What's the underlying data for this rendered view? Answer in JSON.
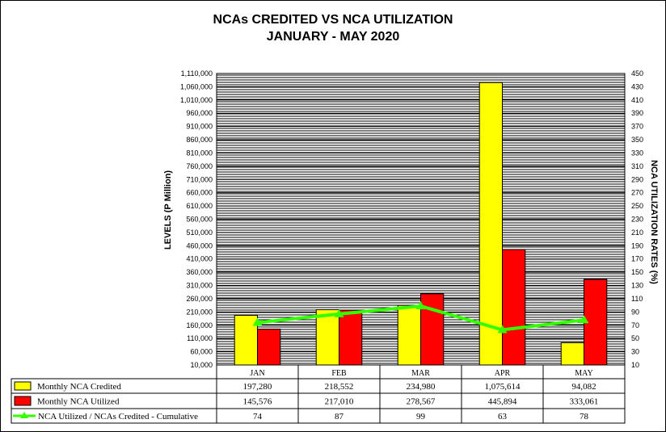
{
  "chart_data": {
    "type": "bar",
    "title": "NCAs CREDITED VS NCA UTILIZATION",
    "subtitle": "JANUARY - MAY 2020",
    "categories": [
      "JAN",
      "FEB",
      "MAR",
      "APR",
      "MAY"
    ],
    "ylabel": "LEVELS (P Million)",
    "y2label": "NCA UTILIZATION RATES (%)",
    "ylim": [
      10000,
      1110000
    ],
    "y2lim": [
      10,
      450
    ],
    "yticks": [
      "10,000",
      "60,000",
      "110,000",
      "160,000",
      "210,000",
      "260,000",
      "310,000",
      "360,000",
      "410,000",
      "460,000",
      "510,000",
      "560,000",
      "610,000",
      "660,000",
      "710,000",
      "760,000",
      "810,000",
      "860,000",
      "910,000",
      "960,000",
      "1,010,000",
      "1,060,000",
      "1,110,000"
    ],
    "y2ticks": [
      "10",
      "30",
      "50",
      "70",
      "90",
      "110",
      "130",
      "150",
      "170",
      "190",
      "210",
      "230",
      "250",
      "270",
      "290",
      "310",
      "330",
      "350",
      "370",
      "390",
      "410",
      "430",
      "450"
    ],
    "series": [
      {
        "name": "Monthly NCA Credited",
        "kind": "bar",
        "axis": "left",
        "color": "#ffff00",
        "values": [
          197280,
          218552,
          234980,
          1075614,
          94082
        ],
        "labels": [
          "197,280",
          "218,552",
          "234,980",
          "1,075,614",
          "94,082"
        ]
      },
      {
        "name": "Monthly NCA Utilized",
        "kind": "bar",
        "axis": "left",
        "color": "#ff0000",
        "values": [
          145576,
          217010,
          278567,
          445894,
          333061
        ],
        "labels": [
          "145,576",
          "217,010",
          "278,567",
          "445,894",
          "333,061"
        ]
      },
      {
        "name": "NCA Utilized / NCAs Credited - Cumulative",
        "kind": "line",
        "axis": "right",
        "color": "#33ff00",
        "values": [
          74,
          87,
          99,
          63,
          78
        ],
        "labels": [
          "74",
          "87",
          "99",
          "63",
          "78"
        ]
      }
    ],
    "grid": true,
    "legend": "data table below the chart"
  }
}
